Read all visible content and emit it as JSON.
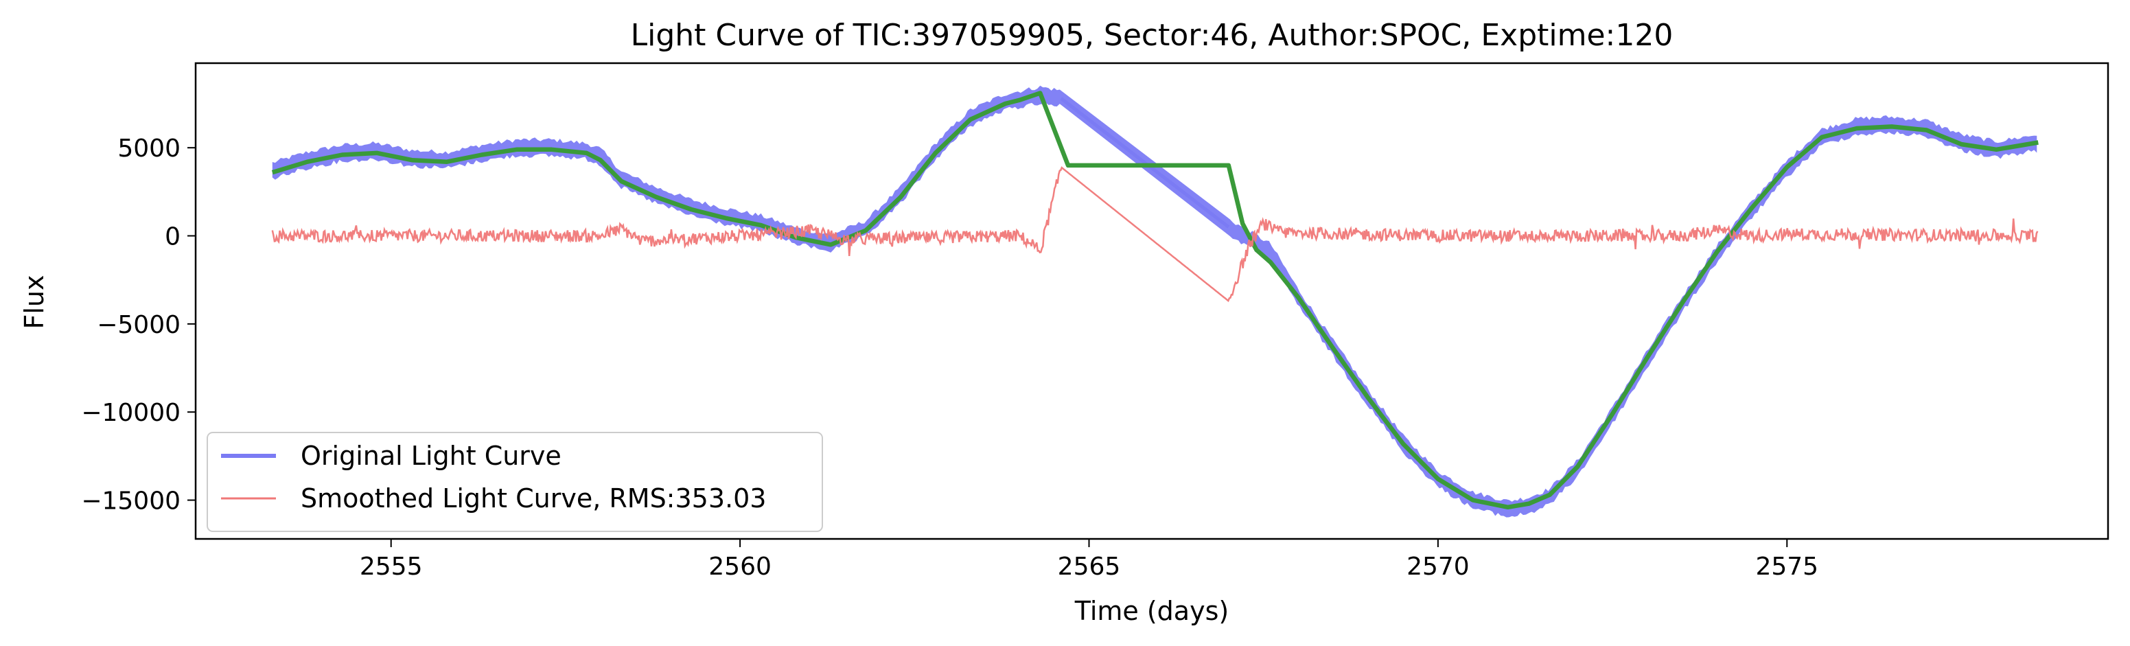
{
  "chart_data": {
    "type": "line",
    "title": "Light Curve of TIC:397059905, Sector:46, Author:SPOC, Exptime:120",
    "xlabel": "Time (days)",
    "ylabel": "Flux",
    "xlim": [
      2552.2,
      2579.6
    ],
    "ylim": [
      -17200,
      9800
    ],
    "xticks": [
      2555,
      2560,
      2565,
      2570,
      2575
    ],
    "yticks": [
      5000,
      0,
      -5000,
      -10000,
      -15000
    ],
    "xtick_labels": [
      "2555",
      "2560",
      "2565",
      "2570",
      "2575"
    ],
    "ytick_labels": [
      "5000",
      "0",
      "−5000",
      "−10000",
      "−15000"
    ],
    "grid": false,
    "legend_position": "lower-left",
    "series": [
      {
        "name": "Original Light Curve",
        "color": "#7b7bf4",
        "style": "band",
        "x": [
          2553.3,
          2553.8,
          2554.3,
          2554.8,
          2555.3,
          2555.8,
          2556.3,
          2556.8,
          2557.3,
          2557.8,
          2558.0,
          2558.3,
          2558.8,
          2559.3,
          2559.8,
          2560.3,
          2560.8,
          2561.3,
          2561.8,
          2562.3,
          2562.8,
          2563.3,
          2563.8,
          2564.3,
          2564.6,
          2567.0,
          2567.3,
          2567.6,
          2568.0,
          2568.5,
          2569.0,
          2569.5,
          2570.0,
          2570.5,
          2571.0,
          2571.3,
          2571.6,
          2572.0,
          2572.5,
          2573.0,
          2573.5,
          2574.0,
          2574.5,
          2575.0,
          2575.5,
          2576.0,
          2576.5,
          2577.0,
          2577.5,
          2578.0,
          2578.6
        ],
        "values": [
          3700,
          4300,
          4700,
          4800,
          4400,
          4300,
          4700,
          5000,
          5000,
          4800,
          4500,
          3200,
          2300,
          1600,
          1100,
          700,
          0,
          -400,
          400,
          2300,
          4800,
          6700,
          7600,
          8000,
          7800,
          500,
          -200,
          -900,
          -3500,
          -6400,
          -9200,
          -11800,
          -13800,
          -15000,
          -15500,
          -15300,
          -14800,
          -13200,
          -10200,
          -7000,
          -3900,
          -1000,
          1500,
          3800,
          5600,
          6200,
          6300,
          6100,
          5300,
          4900,
          5300
        ]
      },
      {
        "name": "",
        "color": "#3a9a3a",
        "style": "line",
        "x": [
          2553.3,
          2553.8,
          2554.3,
          2554.8,
          2555.3,
          2555.8,
          2556.3,
          2556.8,
          2557.3,
          2557.8,
          2558.0,
          2558.3,
          2558.8,
          2559.3,
          2559.8,
          2560.3,
          2560.8,
          2561.3,
          2561.8,
          2562.3,
          2562.8,
          2563.3,
          2563.8,
          2564.0,
          2564.3,
          2564.7,
          2567.0,
          2567.2,
          2567.4,
          2567.6,
          2568.0,
          2568.5,
          2569.0,
          2569.5,
          2570.0,
          2570.5,
          2571.0,
          2571.3,
          2571.6,
          2572.0,
          2572.5,
          2573.0,
          2573.5,
          2574.0,
          2574.5,
          2575.0,
          2575.5,
          2576.0,
          2576.5,
          2577.0,
          2577.5,
          2578.0,
          2578.6
        ],
        "values": [
          3600,
          4200,
          4600,
          4700,
          4300,
          4200,
          4600,
          4900,
          4900,
          4700,
          4300,
          3100,
          2200,
          1500,
          1000,
          600,
          -100,
          -500,
          300,
          2200,
          4700,
          6600,
          7500,
          7700,
          8100,
          4000,
          4000,
          700,
          -800,
          -1500,
          -3500,
          -6400,
          -9200,
          -11800,
          -13800,
          -15000,
          -15400,
          -15200,
          -14700,
          -13100,
          -10100,
          -6900,
          -3800,
          -900,
          1600,
          3900,
          5600,
          6100,
          6200,
          6000,
          5200,
          4900,
          5300
        ]
      },
      {
        "name": "Smoothed Light Curve, RMS:353.03",
        "color": "#f07878",
        "style": "noisy",
        "x": [
          2553.3,
          2558.0,
          2558.3,
          2558.6,
          2560.5,
          2561.0,
          2561.5,
          2564.0,
          2564.2,
          2564.3,
          2564.6,
          2567.0,
          2567.3,
          2567.5,
          2567.7,
          2570.0,
          2573.5,
          2574.0,
          2574.5,
          2575.0,
          2578.6
        ],
        "values": [
          0,
          0,
          400,
          -300,
          100,
          300,
          -200,
          0,
          -500,
          -900,
          3900,
          -3700,
          -500,
          700,
          200,
          0,
          0,
          300,
          0,
          100,
          0
        ]
      }
    ]
  }
}
